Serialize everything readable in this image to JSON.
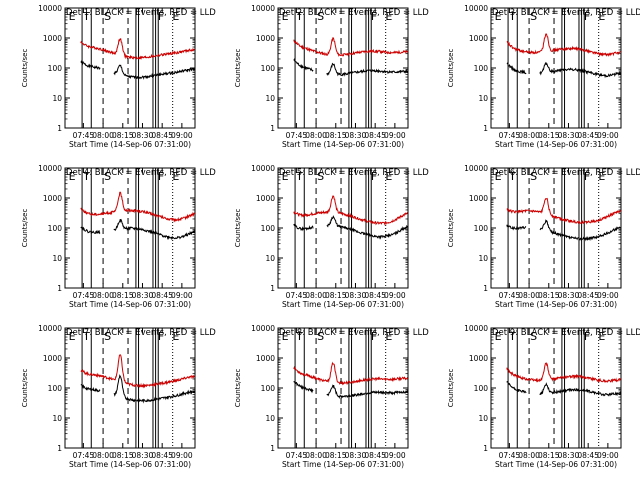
{
  "colors": {
    "events": "#000000",
    "lld": "#cc0000",
    "frame": "#000000"
  },
  "chart_data": [
    {
      "type": "line",
      "title": "Det 1: BLACK = Events, RED = LLD",
      "panel_index": 1
    },
    {
      "type": "line",
      "title": "Det 2: BLACK = Events, RED = LLD",
      "panel_index": 2
    },
    {
      "type": "line",
      "title": "Det 3: BLACK = Events, RED = LLD",
      "panel_index": 3
    },
    {
      "type": "line",
      "title": "Det 4: BLACK = Events, RED = LLD",
      "panel_index": 4
    },
    {
      "type": "line",
      "title": "Det 5: BLACK = Events, RED = LLD",
      "panel_index": 5
    },
    {
      "type": "line",
      "title": "Det 6: BLACK = Events, RED = LLD",
      "panel_index": 6
    },
    {
      "type": "line",
      "title": "Det 7: BLACK = Events, RED = LLD",
      "panel_index": 7
    },
    {
      "type": "line",
      "title": "Det 8: BLACK = Events, RED = LLD",
      "panel_index": 8
    },
    {
      "type": "line",
      "title": "Det 9: BLACK = Events, RED = LLD",
      "panel_index": 9
    }
  ],
  "shared": {
    "ylabel": "Counts/sec",
    "xlabel": "Start Time (14-Sep-06 07:31:00)",
    "xlim": [
      "07:31:00",
      "09:10:00"
    ],
    "ylim": [
      1,
      10000
    ],
    "yscale": "log",
    "xticks": [
      "07:45",
      "08:00",
      "08:15",
      "08:30",
      "08:45",
      "09:00"
    ],
    "yticks": [
      "1",
      "10",
      "100",
      "1000",
      "10000"
    ],
    "series": [
      {
        "name": "Events",
        "color": "#000000"
      },
      {
        "name": "LLD",
        "color": "#cc0000"
      }
    ],
    "flags": {
      "E1": {
        "label": "E",
        "time": "07:33"
      },
      "T": {
        "label": "T",
        "time": "07:44"
      },
      "S": {
        "label": "S",
        "time": "08:00"
      },
      "F": {
        "label": "F",
        "time": "08:41"
      },
      "E2": {
        "label": "E",
        "time": "08:52"
      }
    },
    "solid_lines": [
      "07:44",
      "07:51",
      "08:25",
      "08:27",
      "08:38",
      "08:40",
      "08:42"
    ],
    "dashed_lines": [
      "08:00",
      "08:19"
    ],
    "dotted_lines": [
      "08:53"
    ],
    "gaps": [
      [
        "07:58",
        "08:08"
      ]
    ]
  }
}
